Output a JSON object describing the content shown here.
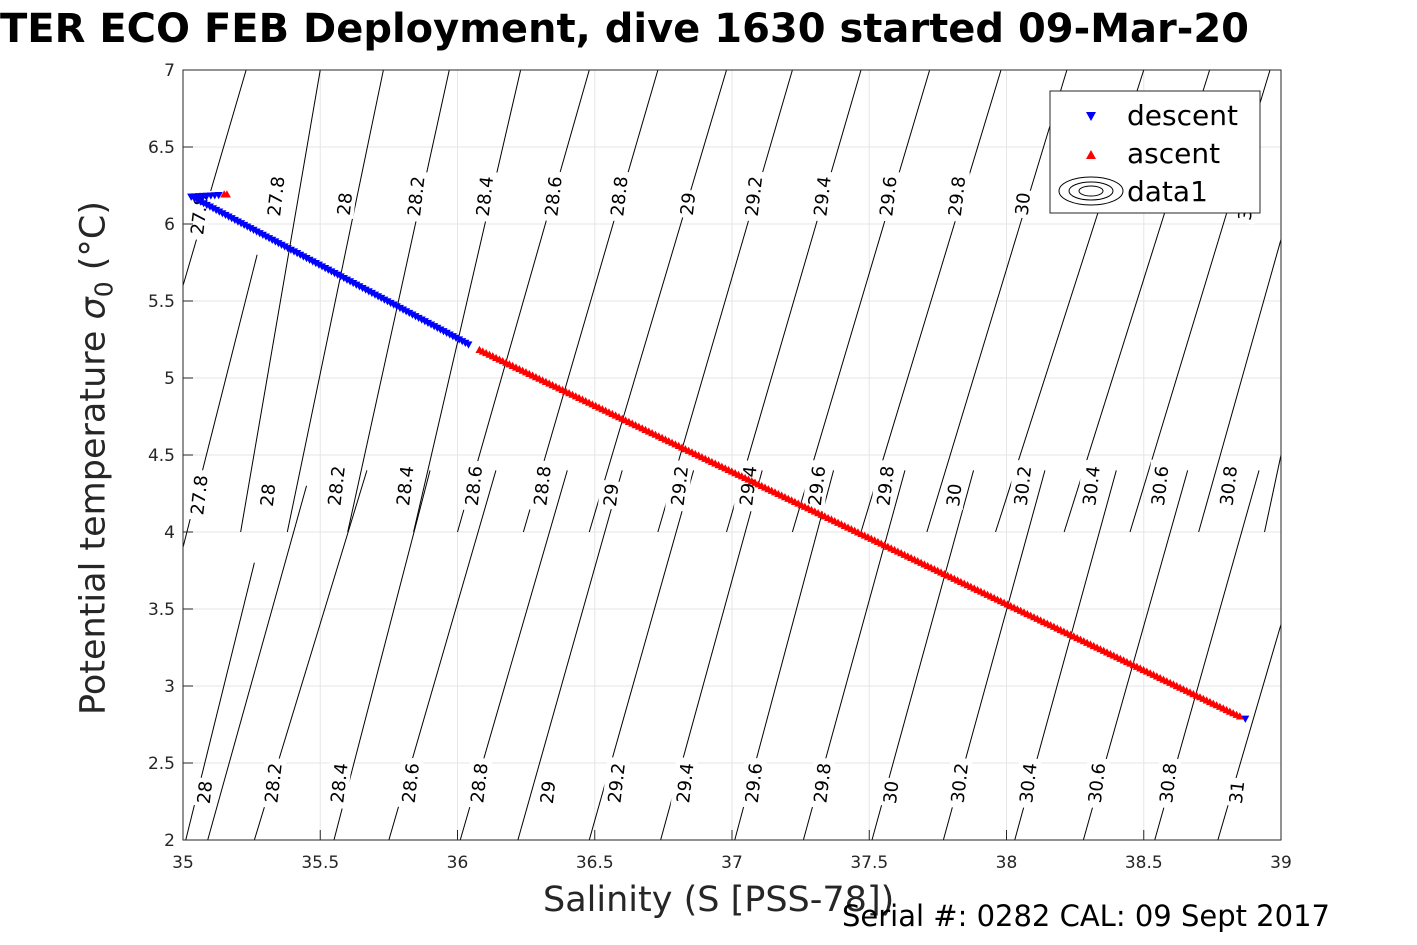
{
  "chart_data": {
    "type": "scatter",
    "title": "TER ECO FEB Deployment, dive 1630 started 09-Mar-20",
    "xlabel": "Salinity (S [PSS-78])",
    "ylabel_main": "Potential temperature ",
    "ylabel_symbol": "σ",
    "ylabel_sub": "0",
    "ylabel_unit": " (°C)",
    "xlim": [
      35,
      39
    ],
    "ylim": [
      2,
      7
    ],
    "xticks": [
      35,
      35.5,
      36,
      36.5,
      37,
      37.5,
      38,
      38.5,
      39
    ],
    "xtick_labels": [
      "35",
      "35.5",
      "36",
      "36.5",
      "37",
      "37.5",
      "38",
      "38.5",
      "39"
    ],
    "yticks": [
      2,
      2.5,
      3,
      3.5,
      4,
      4.5,
      5,
      5.5,
      6,
      6.5,
      7
    ],
    "ytick_labels": [
      "2",
      "2.5",
      "3",
      "3.5",
      "4",
      "4.5",
      "5",
      "5.5",
      "6",
      "6.5",
      "7"
    ],
    "grid": true,
    "legend_placement": "top-right",
    "legend": [
      "descent",
      "ascent",
      "data1"
    ],
    "series": [
      {
        "name": "descent",
        "marker": "triangle-down",
        "color": "#0000ff",
        "segments": [
          {
            "start": [
              35.03,
              6.18
            ],
            "end": [
              36.04,
              5.22
            ],
            "count": 90
          },
          {
            "start": [
              35.03,
              6.18
            ],
            "end": [
              35.13,
              6.19
            ],
            "count": 8
          },
          {
            "start": [
              38.87,
              2.79
            ],
            "end": [
              38.87,
              2.79
            ],
            "count": 1
          }
        ]
      },
      {
        "name": "ascent",
        "marker": "triangle-up",
        "color": "#ff0000",
        "segments": [
          {
            "start": [
              36.08,
              5.18
            ],
            "end": [
              38.85,
              2.8
            ],
            "count": 230
          },
          {
            "start": [
              35.15,
              6.19
            ],
            "end": [
              35.16,
              6.19
            ],
            "count": 2
          }
        ]
      }
    ],
    "density_contours": {
      "name": "data1",
      "slope": 15.4,
      "segments": [
        [
          35.0,
          5.6,
          35.23,
          7.0
        ],
        [
          35.0,
          3.9,
          35.27,
          5.8
        ],
        [
          35.01,
          2.0,
          35.26,
          3.8
        ],
        [
          35.09,
          2.0,
          35.45,
          4.3
        ],
        [
          35.21,
          4.0,
          35.5,
          7.0
        ],
        [
          35.26,
          2.0,
          35.67,
          4.4
        ],
        [
          35.38,
          4.0,
          35.73,
          7.0
        ],
        [
          35.55,
          2.0,
          35.9,
          4.4
        ],
        [
          35.6,
          4.0,
          35.97,
          7.0
        ],
        [
          35.75,
          2.0,
          36.14,
          4.4
        ],
        [
          35.84,
          4.0,
          36.23,
          7.0
        ],
        [
          36.01,
          2.0,
          36.4,
          4.4
        ],
        [
          36.0,
          4.0,
          36.48,
          7.0
        ],
        [
          36.22,
          2.0,
          36.6,
          4.4
        ],
        [
          36.24,
          4.0,
          36.73,
          7.0
        ],
        [
          36.48,
          2.0,
          36.86,
          4.4
        ],
        [
          36.48,
          4.0,
          36.98,
          7.0
        ],
        [
          36.74,
          2.0,
          37.11,
          4.4
        ],
        [
          36.73,
          4.0,
          37.22,
          7.0
        ],
        [
          37.01,
          2.0,
          37.37,
          4.4
        ],
        [
          36.98,
          4.0,
          37.47,
          7.0
        ],
        [
          37.26,
          2.0,
          37.63,
          4.4
        ],
        [
          37.22,
          4.0,
          37.72,
          7.0
        ],
        [
          37.51,
          2.0,
          37.88,
          4.4
        ],
        [
          37.47,
          4.0,
          37.98,
          7.0
        ],
        [
          37.77,
          2.0,
          38.14,
          4.4
        ],
        [
          37.71,
          4.0,
          38.22,
          7.0
        ],
        [
          38.03,
          2.0,
          38.4,
          4.4
        ],
        [
          37.96,
          4.0,
          38.5,
          7.0
        ],
        [
          38.28,
          2.0,
          38.66,
          4.4
        ],
        [
          38.21,
          4.0,
          38.74,
          7.0
        ],
        [
          38.54,
          2.0,
          38.92,
          4.4
        ],
        [
          38.45,
          4.0,
          38.96,
          7.0
        ],
        [
          38.77,
          2.0,
          39.0,
          3.4
        ],
        [
          38.7,
          4.0,
          39.0,
          5.9
        ],
        [
          38.94,
          4.0,
          39.0,
          4.5
        ]
      ],
      "labels": [
        {
          "text": "27.8",
          "s": 35.06,
          "t": 6.06
        },
        {
          "text": "27.8",
          "s": 35.34,
          "t": 6.18
        },
        {
          "text": "28",
          "s": 35.59,
          "t": 6.13
        },
        {
          "text": "28.2",
          "s": 35.85,
          "t": 6.18
        },
        {
          "text": "28.4",
          "s": 36.1,
          "t": 6.18
        },
        {
          "text": "28.6",
          "s": 36.35,
          "t": 6.18
        },
        {
          "text": "28.8",
          "s": 36.59,
          "t": 6.18
        },
        {
          "text": "29",
          "s": 36.84,
          "t": 6.13
        },
        {
          "text": "29.2",
          "s": 37.08,
          "t": 6.18
        },
        {
          "text": "29.4",
          "s": 37.33,
          "t": 6.18
        },
        {
          "text": "29.6",
          "s": 37.57,
          "t": 6.18
        },
        {
          "text": "29.8",
          "s": 37.82,
          "t": 6.18
        },
        {
          "text": "30",
          "s": 38.06,
          "t": 6.13
        },
        {
          "text": "27.8",
          "s": 35.06,
          "t": 4.24
        },
        {
          "text": "28",
          "s": 35.31,
          "t": 4.24
        },
        {
          "text": "28.2",
          "s": 35.56,
          "t": 4.3
        },
        {
          "text": "28.4",
          "s": 35.81,
          "t": 4.3
        },
        {
          "text": "28.6",
          "s": 36.06,
          "t": 4.3
        },
        {
          "text": "28.8",
          "s": 36.31,
          "t": 4.3
        },
        {
          "text": "29",
          "s": 36.56,
          "t": 4.24
        },
        {
          "text": "29.2",
          "s": 36.81,
          "t": 4.3
        },
        {
          "text": "29.4",
          "s": 37.06,
          "t": 4.3
        },
        {
          "text": "29.6",
          "s": 37.31,
          "t": 4.3
        },
        {
          "text": "29.8",
          "s": 37.56,
          "t": 4.3
        },
        {
          "text": "30",
          "s": 37.81,
          "t": 4.24
        },
        {
          "text": "30.2",
          "s": 38.06,
          "t": 4.3
        },
        {
          "text": "30.4",
          "s": 38.31,
          "t": 4.3
        },
        {
          "text": "30.6",
          "s": 38.56,
          "t": 4.3
        },
        {
          "text": "30.8",
          "s": 38.81,
          "t": 4.3
        },
        {
          "text": "28",
          "s": 35.08,
          "t": 2.31
        },
        {
          "text": "28.2",
          "s": 35.33,
          "t": 2.37
        },
        {
          "text": "28.4",
          "s": 35.57,
          "t": 2.37
        },
        {
          "text": "28.6",
          "s": 35.83,
          "t": 2.37
        },
        {
          "text": "28.8",
          "s": 36.08,
          "t": 2.37
        },
        {
          "text": "29",
          "s": 36.33,
          "t": 2.31
        },
        {
          "text": "29.2",
          "s": 36.58,
          "t": 2.37
        },
        {
          "text": "29.4",
          "s": 36.83,
          "t": 2.37
        },
        {
          "text": "29.6",
          "s": 37.08,
          "t": 2.37
        },
        {
          "text": "29.8",
          "s": 37.33,
          "t": 2.37
        },
        {
          "text": "30",
          "s": 37.58,
          "t": 2.31
        },
        {
          "text": "30.2",
          "s": 37.83,
          "t": 2.37
        },
        {
          "text": "30.4",
          "s": 38.08,
          "t": 2.37
        },
        {
          "text": "30.6",
          "s": 38.33,
          "t": 2.37
        },
        {
          "text": "30.8",
          "s": 38.59,
          "t": 2.37
        },
        {
          "text": "31",
          "s": 38.84,
          "t": 2.31
        },
        {
          "text": "3",
          "s": 38.87,
          "t": 6.06
        }
      ]
    }
  },
  "footer": {
    "serial_text": "Serial #: 0282  CAL: 09 Sept 2017"
  }
}
